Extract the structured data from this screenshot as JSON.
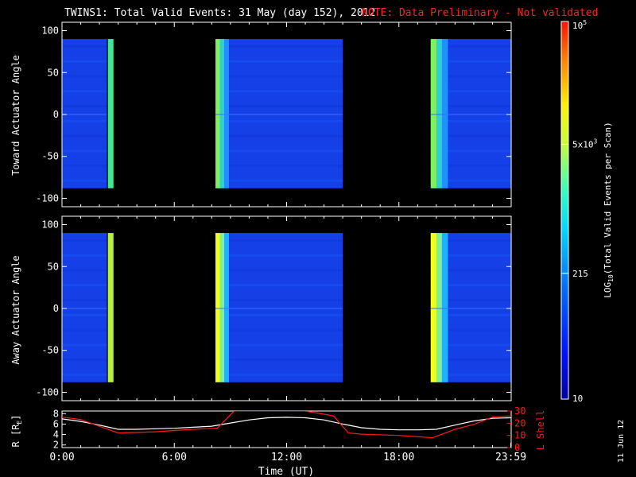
{
  "title": {
    "main": "TWINS1: Total Valid Events: 31 May (day 152), 2012",
    "note": "NOTE: Data Preliminary - Not validated"
  },
  "colors": {
    "background": "#000000",
    "axes": "#ffffff",
    "note": "#ff2020",
    "lshell": "#ff1a1a"
  },
  "side_label": "11 Jun 12",
  "chart_data": [
    {
      "id": "toward",
      "type": "heatmap",
      "ylabel": "Toward Actuator Angle",
      "ylim": [
        -110,
        110
      ],
      "xlim_hours": [
        0,
        24
      ],
      "yticks": [
        100,
        50,
        0,
        -50,
        -100
      ],
      "angle_range": [
        -88,
        90
      ],
      "segments": [
        {
          "start_hour": 0.0,
          "end_hour": 2.4,
          "level": "low",
          "edge_band_hours": [
            2.45,
            2.75
          ]
        },
        {
          "start_hour": 8.2,
          "end_hour": 15.0,
          "level": "low",
          "lead_band_hours": [
            8.2,
            8.9
          ]
        },
        {
          "start_hour": 19.7,
          "end_hour": 24.0,
          "level": "low",
          "lead_band_hours": [
            19.7,
            20.6
          ]
        }
      ]
    },
    {
      "id": "away",
      "type": "heatmap",
      "ylabel": "Away Actuator Angle",
      "ylim": [
        -110,
        110
      ],
      "xlim_hours": [
        0,
        24
      ],
      "yticks": [
        100,
        50,
        0,
        -50,
        -100
      ],
      "angle_range": [
        -88,
        90
      ],
      "segments": [
        {
          "start_hour": 0.0,
          "end_hour": 2.4,
          "level": "low",
          "edge_band_hours": [
            2.45,
            2.75
          ]
        },
        {
          "start_hour": 8.2,
          "end_hour": 15.0,
          "level": "low",
          "lead_band_hours": [
            8.2,
            8.9
          ]
        },
        {
          "start_hour": 19.7,
          "end_hour": 24.0,
          "level": "low",
          "lead_band_hours": [
            19.7,
            20.6
          ]
        }
      ]
    },
    {
      "id": "orbit",
      "type": "line",
      "xlabel": "Time (UT)",
      "xticks": [
        "0:00",
        "6:00",
        "12:00",
        "18:00",
        "23:59"
      ],
      "xtick_hours": [
        0,
        6,
        12,
        18,
        23.98
      ],
      "ylabel_left": "R [R",
      "ylabel_left_sub": "E",
      "ylabel_left_close": "]",
      "ylabel_right": "L Shell",
      "yleft_ticks": [
        2,
        4,
        6,
        8
      ],
      "yleft_lim": [
        1.5,
        8.5
      ],
      "yright_ticks": [
        0,
        10,
        20,
        30
      ],
      "yright_lim": [
        0,
        30
      ],
      "series": [
        {
          "id": "R",
          "axis": "left",
          "color": "#ffffff",
          "x": [
            0,
            1,
            2,
            3,
            4,
            5,
            6,
            7,
            8,
            9,
            10,
            11,
            12,
            13,
            14,
            15,
            16,
            17,
            18,
            19,
            20,
            21,
            22,
            23,
            24
          ],
          "y": [
            7.0,
            6.5,
            5.8,
            5.0,
            5.0,
            5.1,
            5.2,
            5.4,
            5.6,
            6.2,
            6.8,
            7.2,
            7.3,
            7.2,
            6.8,
            6.0,
            5.3,
            5.0,
            4.9,
            4.9,
            5.0,
            5.8,
            6.6,
            7.1,
            7.2
          ]
        },
        {
          "id": "L",
          "axis": "right",
          "color": "#ff1a1a",
          "x": [
            0,
            1,
            3,
            5,
            6,
            7,
            8.3,
            9.2,
            10,
            11,
            12,
            13,
            14.5,
            15.3,
            16,
            18,
            19.8,
            21,
            22,
            23,
            24
          ],
          "y": [
            25,
            23,
            12,
            13,
            14,
            15,
            16,
            30,
            30,
            30,
            30,
            30,
            26,
            12,
            11,
            10,
            8,
            15,
            19,
            25,
            26
          ]
        }
      ]
    }
  ],
  "colorbar": {
    "label": "LOG",
    "label_sub": "10",
    "label_rest": "(Total Valid Events per Scan)",
    "ticks": [
      {
        "value": 10,
        "text": "10"
      },
      {
        "value": 215,
        "text": "215"
      },
      {
        "value": 5000,
        "text": "5x10",
        "sup": "3"
      },
      {
        "value": 100000,
        "text": "10",
        "sup": "5"
      }
    ],
    "range": [
      10,
      100000
    ]
  }
}
